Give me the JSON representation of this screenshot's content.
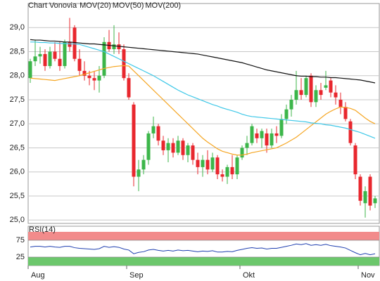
{
  "chart_data": {
    "type": "candlestick",
    "title": "Chart Vonovia",
    "title_color": "#e0262d",
    "categories": [
      "Aug",
      null,
      null,
      null,
      null,
      null,
      null,
      null,
      null,
      null,
      null,
      null,
      null,
      null,
      null,
      null,
      null,
      null,
      null,
      null,
      "Sep",
      null,
      null,
      null,
      null,
      null,
      null,
      null,
      null,
      null,
      null,
      null,
      null,
      null,
      null,
      null,
      null,
      null,
      null,
      null,
      null,
      null,
      null,
      "Okt",
      null,
      null,
      null,
      null,
      null,
      null,
      null,
      null,
      null,
      null,
      null,
      null,
      null,
      null,
      null,
      null,
      null,
      null,
      null,
      null,
      null,
      null,
      null,
      "Nov",
      null,
      null,
      null
    ],
    "open": [
      27.95,
      28.3,
      28.4,
      28.45,
      28.2,
      28.5,
      28.35,
      28.2,
      28.7,
      29.0,
      28.35,
      28.1,
      28.0,
      27.95,
      27.9,
      28.0,
      28.7,
      28.55,
      28.65,
      28.55,
      27.95,
      27.4,
      25.9,
      26.05,
      26.25,
      26.8,
      26.95,
      26.65,
      26.45,
      26.6,
      26.4,
      26.65,
      26.35,
      26.55,
      26.25,
      26.1,
      26.25,
      26.05,
      26.3,
      25.95,
      25.9,
      26.1,
      25.95,
      26.3,
      26.5,
      26.6,
      26.8,
      26.7,
      26.8,
      26.55,
      26.8,
      26.75,
      27.1,
      27.3,
      27.5,
      27.7,
      27.6,
      28.0,
      27.45,
      27.7,
      27.75,
      27.9,
      27.65,
      27.5,
      27.35,
      27.05,
      26.55,
      25.9,
      25.35,
      25.9,
      25.35
    ],
    "high": [
      28.35,
      28.75,
      28.6,
      28.55,
      28.6,
      28.7,
      28.7,
      28.75,
      29.2,
      29.05,
      28.55,
      28.3,
      28.1,
      28.1,
      28.2,
      28.8,
      28.95,
      29.05,
      28.9,
      28.65,
      28.05,
      27.45,
      26.25,
      26.35,
      26.85,
      27.15,
      27.0,
      26.75,
      26.7,
      26.7,
      26.75,
      26.7,
      26.6,
      26.6,
      26.4,
      26.35,
      26.45,
      26.4,
      26.35,
      26.05,
      26.15,
      26.35,
      26.35,
      26.55,
      26.75,
      27.0,
      26.9,
      26.9,
      26.9,
      26.9,
      26.95,
      27.2,
      27.4,
      27.6,
      28.1,
      27.95,
      28.0,
      28.05,
      27.8,
      27.85,
      28.1,
      27.95,
      27.8,
      27.65,
      27.45,
      27.1,
      26.6,
      25.95,
      25.7,
      25.95,
      25.5
    ],
    "low": [
      27.85,
      28.2,
      28.25,
      28.1,
      28.15,
      28.3,
      28.1,
      28.15,
      28.5,
      28.3,
      28.0,
      27.9,
      27.8,
      27.7,
      27.65,
      27.95,
      28.5,
      28.45,
      28.45,
      27.9,
      27.5,
      25.7,
      25.6,
      25.95,
      26.15,
      26.7,
      26.55,
      26.35,
      26.2,
      26.3,
      26.35,
      26.25,
      26.2,
      26.15,
      25.95,
      25.9,
      25.95,
      26.0,
      25.85,
      25.8,
      25.75,
      25.85,
      25.85,
      26.25,
      26.35,
      26.55,
      26.6,
      26.5,
      26.4,
      26.5,
      26.6,
      26.7,
      27.0,
      27.15,
      27.4,
      27.5,
      27.55,
      27.35,
      27.35,
      27.5,
      27.7,
      27.55,
      27.4,
      27.2,
      27.05,
      26.55,
      25.85,
      25.3,
      25.05,
      25.2,
      25.25
    ],
    "close": [
      28.3,
      28.4,
      28.45,
      28.2,
      28.5,
      28.35,
      28.2,
      28.7,
      28.6,
      28.35,
      28.1,
      28.0,
      27.95,
      27.9,
      28.0,
      28.7,
      28.55,
      28.65,
      28.55,
      27.95,
      27.55,
      25.9,
      26.05,
      26.25,
      26.8,
      26.95,
      26.65,
      26.45,
      26.6,
      26.4,
      26.65,
      26.35,
      26.55,
      26.25,
      26.1,
      26.25,
      26.05,
      26.3,
      25.95,
      25.9,
      26.1,
      25.95,
      26.3,
      26.5,
      26.6,
      26.95,
      26.7,
      26.85,
      26.55,
      26.8,
      26.75,
      27.1,
      27.3,
      27.5,
      27.7,
      27.6,
      27.95,
      27.45,
      27.7,
      27.6,
      27.8,
      27.65,
      27.55,
      27.35,
      27.1,
      26.6,
      25.95,
      25.4,
      25.6,
      25.3,
      25.45
    ],
    "up_color": "#3cb64a",
    "down_color": "#e8272e",
    "series": [
      {
        "name": "MOV(20)",
        "color": "#f5a623",
        "values": [
          27.95,
          27.94,
          27.93,
          27.92,
          27.91,
          27.9,
          27.92,
          27.94,
          27.96,
          27.98,
          28.0,
          28.03,
          28.06,
          28.09,
          28.12,
          28.15,
          28.17,
          28.19,
          28.2,
          28.21,
          28.2,
          28.1,
          28.0,
          27.9,
          27.8,
          27.7,
          27.6,
          27.5,
          27.4,
          27.3,
          27.2,
          27.1,
          27.0,
          26.9,
          26.8,
          26.7,
          26.62,
          26.55,
          26.48,
          26.43,
          26.4,
          26.37,
          26.35,
          26.35,
          26.37,
          26.4,
          26.42,
          26.44,
          26.46,
          26.48,
          26.5,
          26.55,
          26.6,
          26.66,
          26.72,
          26.8,
          26.88,
          26.96,
          27.04,
          27.12,
          27.2,
          27.26,
          27.31,
          27.35,
          27.34,
          27.32,
          27.28,
          27.2,
          27.12,
          27.05,
          27.0
        ]
      },
      {
        "name": "MOV(50)",
        "color": "#3fc8e8",
        "values": [
          28.7,
          28.7,
          28.69,
          28.69,
          28.68,
          28.68,
          28.67,
          28.67,
          28.66,
          28.66,
          28.65,
          28.62,
          28.59,
          28.56,
          28.53,
          28.5,
          28.45,
          28.4,
          28.35,
          28.3,
          28.25,
          28.2,
          28.15,
          28.1,
          28.05,
          28.0,
          27.94,
          27.88,
          27.82,
          27.76,
          27.7,
          27.65,
          27.6,
          27.56,
          27.52,
          27.48,
          27.44,
          27.4,
          27.37,
          27.33,
          27.3,
          27.27,
          27.24,
          27.2,
          27.17,
          27.15,
          27.14,
          27.13,
          27.12,
          27.11,
          27.1,
          27.09,
          27.08,
          27.07,
          27.06,
          27.05,
          27.04,
          27.02,
          27.01,
          27.0,
          26.98,
          26.97,
          26.95,
          26.93,
          26.91,
          26.88,
          26.85,
          26.82,
          26.78,
          26.74,
          26.7
        ]
      },
      {
        "name": "MOV(200)",
        "color": "#111111",
        "values": [
          28.75,
          28.74,
          28.74,
          28.73,
          28.72,
          28.72,
          28.71,
          28.7,
          28.7,
          28.69,
          28.68,
          28.67,
          28.66,
          28.66,
          28.65,
          28.64,
          28.63,
          28.62,
          28.61,
          28.6,
          28.59,
          28.58,
          28.57,
          28.56,
          28.55,
          28.54,
          28.53,
          28.52,
          28.51,
          28.5,
          28.49,
          28.48,
          28.47,
          28.46,
          28.45,
          28.43,
          28.41,
          28.39,
          28.37,
          28.35,
          28.33,
          28.31,
          28.29,
          28.27,
          28.24,
          28.21,
          28.18,
          28.15,
          28.12,
          28.1,
          28.08,
          28.06,
          28.04,
          28.02,
          28.0,
          27.99,
          27.99,
          27.98,
          27.98,
          27.97,
          27.97,
          27.96,
          27.96,
          27.95,
          27.94,
          27.93,
          27.92,
          27.91,
          27.89,
          27.87,
          27.85
        ]
      }
    ],
    "ylim": [
      24.93,
      29.5
    ],
    "yticks": [
      {
        "value": 25,
        "label": "25,0"
      },
      {
        "value": 25.5,
        "label": "25,5"
      },
      {
        "value": 26,
        "label": "26,0"
      },
      {
        "value": 26.5,
        "label": "26,5"
      },
      {
        "value": 27,
        "label": "27,0"
      },
      {
        "value": 27.5,
        "label": "27,5"
      },
      {
        "value": 28,
        "label": "28,0"
      },
      {
        "value": 28.5,
        "label": "28,5"
      },
      {
        "value": 29,
        "label": "29,0"
      }
    ],
    "grid": true,
    "rsi": {
      "name": "RSI(14)",
      "color": "#1f3fb0",
      "high_color": "#f28b8b",
      "low_color": "#6cc76c",
      "ylim": [
        0,
        100
      ],
      "yticks": [
        25,
        75
      ],
      "values": [
        55,
        57,
        57,
        55,
        57,
        55,
        54,
        57,
        57,
        53,
        51,
        50,
        49,
        48,
        50,
        57,
        54,
        56,
        54,
        49,
        46,
        35,
        39,
        41,
        46,
        48,
        45,
        43,
        45,
        43,
        46,
        44,
        45,
        43,
        41,
        43,
        42,
        44,
        40,
        40,
        42,
        41,
        45,
        48,
        51,
        53,
        51,
        52,
        49,
        51,
        51,
        54,
        57,
        60,
        64,
        62,
        65,
        60,
        62,
        60,
        63,
        59,
        57,
        55,
        52,
        45,
        38,
        32,
        36,
        32,
        35
      ]
    }
  }
}
